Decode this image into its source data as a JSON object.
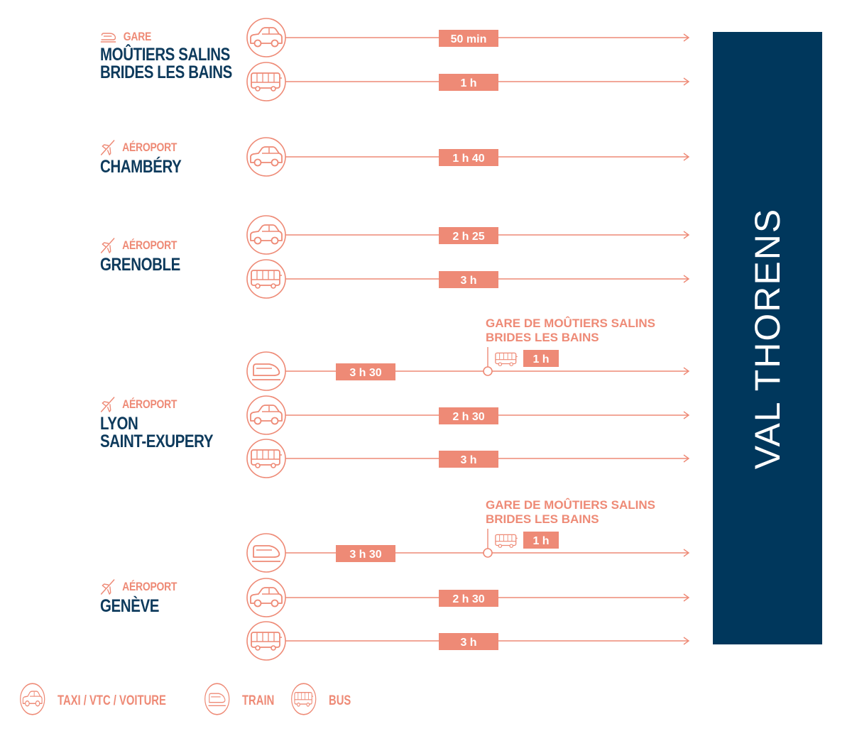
{
  "colors": {
    "accent": "#ee8a76",
    "navy": "#00375c",
    "navy_text": "#0d3a5c"
  },
  "destination": "VAL THORENS",
  "origins": [
    {
      "type": "GARE",
      "icon": "train-icon",
      "name": "MOÛTIERS SALINS\nBRIDES LES BAINS"
    },
    {
      "type": "AÉROPORT",
      "icon": "plane-icon",
      "name": "CHAMBÉRY"
    },
    {
      "type": "AÉROPORT",
      "icon": "plane-icon",
      "name": "GRENOBLE"
    },
    {
      "type": "AÉROPORT",
      "icon": "plane-icon",
      "name": "LYON\nSAINT-EXUPERY"
    },
    {
      "type": "AÉROPORT",
      "icon": "plane-icon",
      "name": "GENÈVE"
    }
  ],
  "routes": [
    {
      "origin": 0,
      "mode": "car",
      "duration": "50 min"
    },
    {
      "origin": 0,
      "mode": "bus",
      "duration": "1 h"
    },
    {
      "origin": 1,
      "mode": "car",
      "duration": "1 h 40"
    },
    {
      "origin": 2,
      "mode": "car",
      "duration": "2 h 25"
    },
    {
      "origin": 2,
      "mode": "bus",
      "duration": "3 h"
    },
    {
      "origin": 3,
      "mode": "train",
      "duration": "3 h 30",
      "transfer": {
        "label_line1": "GARE DE MOÛTIERS SALINS",
        "label_line2": "BRIDES LES BAINS",
        "mode": "bus",
        "duration": "1 h"
      }
    },
    {
      "origin": 3,
      "mode": "car",
      "duration": "2 h 30"
    },
    {
      "origin": 3,
      "mode": "bus",
      "duration": "3 h"
    },
    {
      "origin": 4,
      "mode": "train",
      "duration": "3 h 30",
      "transfer": {
        "label_line1": "GARE DE MOÛTIERS SALINS",
        "label_line2": "BRIDES LES BAINS",
        "mode": "bus",
        "duration": "1 h"
      }
    },
    {
      "origin": 4,
      "mode": "car",
      "duration": "2 h 30"
    },
    {
      "origin": 4,
      "mode": "bus",
      "duration": "3 h"
    }
  ],
  "legend": [
    {
      "mode": "car",
      "label": "TAXI / VTC / VOITURE"
    },
    {
      "mode": "train",
      "label": "TRAIN"
    },
    {
      "mode": "bus",
      "label": "BUS"
    }
  ]
}
